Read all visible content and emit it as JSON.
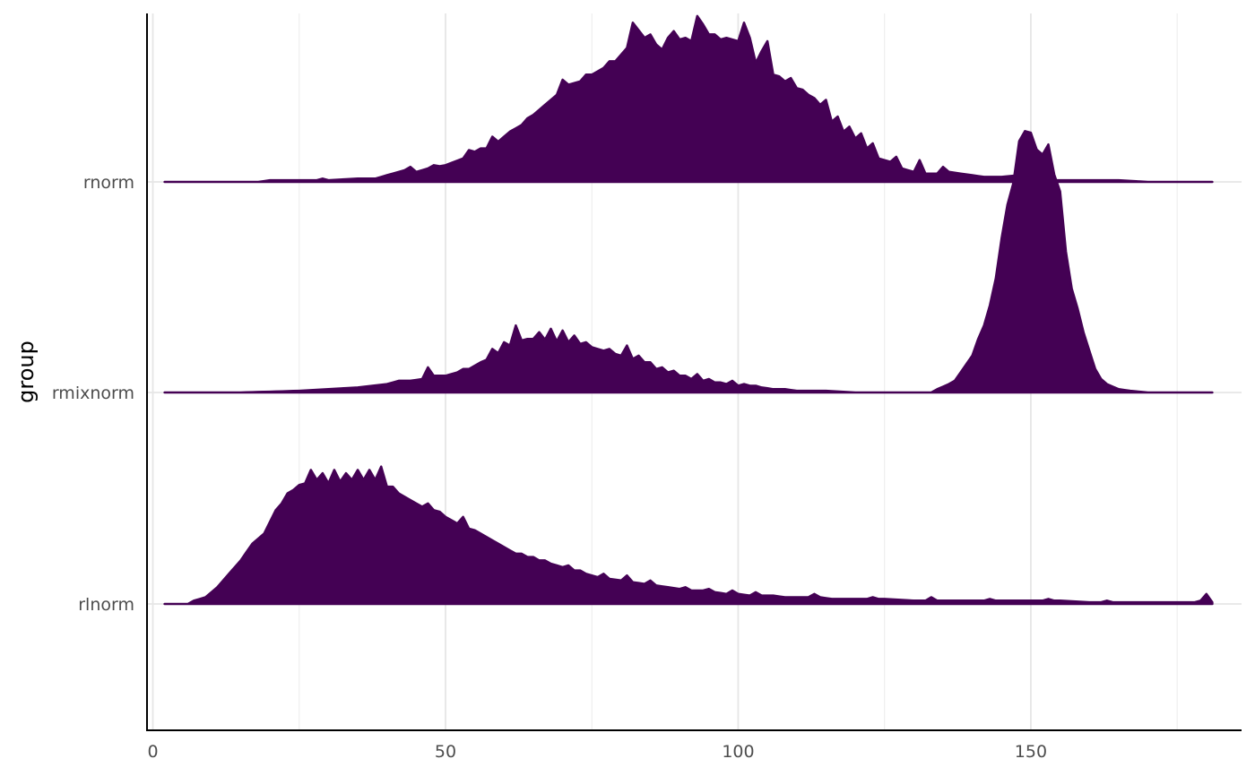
{
  "chart_data": {
    "type": "area",
    "subtype": "ridgeline-histogram",
    "title": "",
    "xlabel": "",
    "ylabel": "group",
    "xlim": [
      -1,
      186
    ],
    "x_ticks": [
      0,
      50,
      100,
      150
    ],
    "x_minor_gridlines": [
      25,
      75,
      125,
      175
    ],
    "grid": "vertical major and minor, horizontal at group baselines",
    "legend": "none",
    "fill_color": "#440154",
    "bin_width": 1,
    "bin_start": 2,
    "bin_end": 181,
    "series": [
      {
        "name": "rnorm",
        "anchors": [
          [
            2,
            0
          ],
          [
            12,
            0
          ],
          [
            18,
            0
          ],
          [
            20,
            0.01
          ],
          [
            25,
            0.01
          ],
          [
            30,
            0.01
          ],
          [
            35,
            0.02
          ],
          [
            38,
            0.02
          ],
          [
            40,
            0.04
          ],
          [
            43,
            0.07
          ],
          [
            45,
            0.06
          ],
          [
            47,
            0.08
          ],
          [
            50,
            0.1
          ],
          [
            53,
            0.14
          ],
          [
            55,
            0.18
          ],
          [
            57,
            0.2
          ],
          [
            59,
            0.24
          ],
          [
            61,
            0.3
          ],
          [
            63,
            0.34
          ],
          [
            65,
            0.4
          ],
          [
            67,
            0.46
          ],
          [
            69,
            0.52
          ],
          [
            71,
            0.58
          ],
          [
            73,
            0.6
          ],
          [
            75,
            0.64
          ],
          [
            77,
            0.68
          ],
          [
            79,
            0.72
          ],
          [
            81,
            0.8
          ],
          [
            82,
            0.95
          ],
          [
            84,
            0.86
          ],
          [
            86,
            0.82
          ],
          [
            88,
            0.86
          ],
          [
            90,
            0.85
          ],
          [
            92,
            0.84
          ],
          [
            94,
            0.94
          ],
          [
            96,
            0.88
          ],
          [
            98,
            0.86
          ],
          [
            100,
            0.84
          ],
          [
            102,
            0.86
          ],
          [
            104,
            0.78
          ],
          [
            106,
            0.64
          ],
          [
            108,
            0.6
          ],
          [
            110,
            0.56
          ],
          [
            112,
            0.52
          ],
          [
            114,
            0.46
          ],
          [
            116,
            0.36
          ],
          [
            118,
            0.3
          ],
          [
            120,
            0.26
          ],
          [
            122,
            0.2
          ],
          [
            124,
            0.14
          ],
          [
            126,
            0.12
          ],
          [
            128,
            0.08
          ],
          [
            130,
            0.06
          ],
          [
            132,
            0.05
          ],
          [
            134,
            0.05
          ],
          [
            136,
            0.06
          ],
          [
            138,
            0.05
          ],
          [
            140,
            0.04
          ],
          [
            142,
            0.03
          ],
          [
            145,
            0.03
          ],
          [
            148,
            0.04
          ],
          [
            150,
            0.03
          ],
          [
            153,
            0.01
          ],
          [
            156,
            0.01
          ],
          [
            160,
            0.01
          ],
          [
            165,
            0.01
          ],
          [
            170,
            0
          ],
          [
            181,
            0
          ]
        ],
        "spikes": [
          [
            26,
            0.01
          ],
          [
            29,
            0.02
          ],
          [
            39,
            0.03
          ],
          [
            44,
            0.09
          ],
          [
            48,
            0.1
          ],
          [
            54,
            0.19
          ],
          [
            56,
            0.2
          ],
          [
            58,
            0.27
          ],
          [
            64,
            0.38
          ],
          [
            70,
            0.61
          ],
          [
            74,
            0.64
          ],
          [
            78,
            0.72
          ],
          [
            85,
            0.88
          ],
          [
            87,
            0.79
          ],
          [
            89,
            0.9
          ],
          [
            91,
            0.86
          ],
          [
            93,
            0.99
          ],
          [
            95,
            0.88
          ],
          [
            97,
            0.85
          ],
          [
            101,
            0.95
          ],
          [
            103,
            0.71
          ],
          [
            105,
            0.84
          ],
          [
            107,
            0.63
          ],
          [
            109,
            0.62
          ],
          [
            111,
            0.55
          ],
          [
            113,
            0.5
          ],
          [
            115,
            0.49
          ],
          [
            117,
            0.39
          ],
          [
            119,
            0.33
          ],
          [
            121,
            0.29
          ],
          [
            123,
            0.23
          ],
          [
            127,
            0.15
          ],
          [
            131,
            0.13
          ],
          [
            135,
            0.09
          ]
        ]
      },
      {
        "name": "rmixnorm",
        "anchors": [
          [
            2,
            0
          ],
          [
            15,
            0
          ],
          [
            25,
            0.01
          ],
          [
            30,
            0.02
          ],
          [
            35,
            0.03
          ],
          [
            40,
            0.05
          ],
          [
            42,
            0.07
          ],
          [
            44,
            0.07
          ],
          [
            46,
            0.08
          ],
          [
            48,
            0.1
          ],
          [
            50,
            0.1
          ],
          [
            52,
            0.12
          ],
          [
            54,
            0.14
          ],
          [
            56,
            0.18
          ],
          [
            58,
            0.21
          ],
          [
            60,
            0.26
          ],
          [
            62,
            0.3
          ],
          [
            64,
            0.32
          ],
          [
            66,
            0.32
          ],
          [
            68,
            0.31
          ],
          [
            70,
            0.3
          ],
          [
            72,
            0.3
          ],
          [
            74,
            0.28
          ],
          [
            76,
            0.26
          ],
          [
            78,
            0.24
          ],
          [
            80,
            0.22
          ],
          [
            82,
            0.2
          ],
          [
            84,
            0.18
          ],
          [
            86,
            0.14
          ],
          [
            88,
            0.12
          ],
          [
            90,
            0.1
          ],
          [
            92,
            0.08
          ],
          [
            94,
            0.07
          ],
          [
            96,
            0.06
          ],
          [
            98,
            0.05
          ],
          [
            100,
            0.04
          ],
          [
            102,
            0.04
          ],
          [
            104,
            0.03
          ],
          [
            106,
            0.02
          ],
          [
            108,
            0.02
          ],
          [
            110,
            0.01
          ],
          [
            115,
            0.01
          ],
          [
            120,
            0
          ],
          [
            125,
            0
          ],
          [
            130,
            0
          ],
          [
            133,
            0
          ],
          [
            134,
            0.02
          ],
          [
            136,
            0.05
          ],
          [
            137,
            0.07
          ],
          [
            138,
            0.12
          ],
          [
            139,
            0.17
          ],
          [
            140,
            0.22
          ],
          [
            141,
            0.32
          ],
          [
            142,
            0.4
          ],
          [
            143,
            0.52
          ],
          [
            144,
            0.68
          ],
          [
            145,
            0.92
          ],
          [
            146,
            1.12
          ],
          [
            147,
            1.25
          ],
          [
            148,
            1.5
          ],
          [
            149,
            1.56
          ],
          [
            150,
            1.55
          ],
          [
            151,
            1.45
          ],
          [
            152,
            1.42
          ],
          [
            153,
            1.48
          ],
          [
            154,
            1.3
          ],
          [
            155,
            1.2
          ],
          [
            156,
            0.84
          ],
          [
            157,
            0.62
          ],
          [
            158,
            0.5
          ],
          [
            159,
            0.36
          ],
          [
            160,
            0.25
          ],
          [
            161,
            0.14
          ],
          [
            162,
            0.08
          ],
          [
            163,
            0.05
          ],
          [
            165,
            0.02
          ],
          [
            167,
            0.01
          ],
          [
            170,
            0
          ],
          [
            181,
            0
          ]
        ],
        "spikes": [
          [
            47,
            0.15
          ],
          [
            53,
            0.14
          ],
          [
            58,
            0.26
          ],
          [
            60,
            0.3
          ],
          [
            62,
            0.4
          ],
          [
            66,
            0.36
          ],
          [
            68,
            0.38
          ],
          [
            70,
            0.37
          ],
          [
            72,
            0.34
          ],
          [
            74,
            0.3
          ],
          [
            78,
            0.26
          ],
          [
            81,
            0.28
          ],
          [
            83,
            0.22
          ],
          [
            85,
            0.18
          ],
          [
            87,
            0.15
          ],
          [
            89,
            0.13
          ],
          [
            91,
            0.1
          ],
          [
            93,
            0.11
          ],
          [
            95,
            0.08
          ],
          [
            97,
            0.06
          ],
          [
            99,
            0.07
          ],
          [
            101,
            0.05
          ],
          [
            103,
            0.04
          ]
        ]
      },
      {
        "name": "rlnorm",
        "anchors": [
          [
            2,
            0
          ],
          [
            6,
            0
          ],
          [
            7,
            0.02
          ],
          [
            9,
            0.04
          ],
          [
            11,
            0.1
          ],
          [
            13,
            0.18
          ],
          [
            15,
            0.26
          ],
          [
            17,
            0.36
          ],
          [
            19,
            0.42
          ],
          [
            21,
            0.56
          ],
          [
            22,
            0.6
          ],
          [
            24,
            0.68
          ],
          [
            26,
            0.72
          ],
          [
            28,
            0.74
          ],
          [
            30,
            0.72
          ],
          [
            32,
            0.73
          ],
          [
            34,
            0.74
          ],
          [
            36,
            0.74
          ],
          [
            38,
            0.74
          ],
          [
            40,
            0.7
          ],
          [
            42,
            0.66
          ],
          [
            44,
            0.62
          ],
          [
            46,
            0.58
          ],
          [
            48,
            0.56
          ],
          [
            50,
            0.52
          ],
          [
            52,
            0.48
          ],
          [
            54,
            0.45
          ],
          [
            56,
            0.42
          ],
          [
            58,
            0.38
          ],
          [
            60,
            0.34
          ],
          [
            62,
            0.3
          ],
          [
            64,
            0.28
          ],
          [
            66,
            0.26
          ],
          [
            68,
            0.24
          ],
          [
            70,
            0.22
          ],
          [
            72,
            0.2
          ],
          [
            74,
            0.18
          ],
          [
            76,
            0.16
          ],
          [
            78,
            0.15
          ],
          [
            80,
            0.14
          ],
          [
            82,
            0.13
          ],
          [
            84,
            0.12
          ],
          [
            86,
            0.11
          ],
          [
            88,
            0.1
          ],
          [
            90,
            0.09
          ],
          [
            92,
            0.08
          ],
          [
            94,
            0.08
          ],
          [
            96,
            0.07
          ],
          [
            98,
            0.06
          ],
          [
            100,
            0.06
          ],
          [
            102,
            0.05
          ],
          [
            104,
            0.05
          ],
          [
            106,
            0.05
          ],
          [
            108,
            0.04
          ],
          [
            110,
            0.04
          ],
          [
            112,
            0.04
          ],
          [
            114,
            0.04
          ],
          [
            116,
            0.03
          ],
          [
            118,
            0.03
          ],
          [
            120,
            0.03
          ],
          [
            125,
            0.03
          ],
          [
            130,
            0.02
          ],
          [
            135,
            0.02
          ],
          [
            140,
            0.02
          ],
          [
            145,
            0.02
          ],
          [
            150,
            0.02
          ],
          [
            155,
            0.02
          ],
          [
            160,
            0.01
          ],
          [
            165,
            0.01
          ],
          [
            170,
            0.01
          ],
          [
            175,
            0.01
          ],
          [
            178,
            0.01
          ],
          [
            179,
            0.02
          ],
          [
            180,
            0.06
          ],
          [
            181,
            0.01
          ]
        ],
        "spikes": [
          [
            23,
            0.66
          ],
          [
            25,
            0.71
          ],
          [
            27,
            0.8
          ],
          [
            29,
            0.78
          ],
          [
            31,
            0.8
          ],
          [
            33,
            0.78
          ],
          [
            35,
            0.8
          ],
          [
            37,
            0.8
          ],
          [
            39,
            0.82
          ],
          [
            41,
            0.7
          ],
          [
            43,
            0.64
          ],
          [
            45,
            0.6
          ],
          [
            47,
            0.6
          ],
          [
            49,
            0.55
          ],
          [
            51,
            0.5
          ],
          [
            53,
            0.52
          ],
          [
            55,
            0.44
          ],
          [
            57,
            0.4
          ],
          [
            61,
            0.32
          ],
          [
            63,
            0.3
          ],
          [
            65,
            0.28
          ],
          [
            67,
            0.26
          ],
          [
            71,
            0.23
          ],
          [
            73,
            0.2
          ],
          [
            77,
            0.18
          ],
          [
            81,
            0.17
          ],
          [
            85,
            0.14
          ],
          [
            91,
            0.1
          ],
          [
            95,
            0.09
          ],
          [
            99,
            0.08
          ],
          [
            103,
            0.07
          ],
          [
            113,
            0.06
          ],
          [
            123,
            0.04
          ],
          [
            133,
            0.04
          ],
          [
            143,
            0.03
          ],
          [
            153,
            0.03
          ],
          [
            163,
            0.02
          ]
        ]
      }
    ]
  }
}
